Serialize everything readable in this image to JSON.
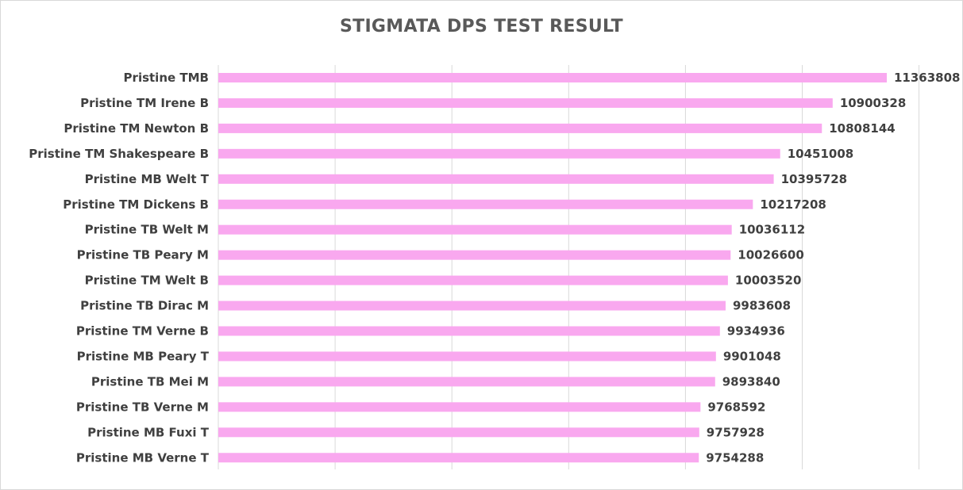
{
  "chart_data": {
    "type": "bar",
    "orientation": "horizontal",
    "title": "STIGMATA DPS TEST RESULT",
    "xlabel": "",
    "ylabel": "",
    "xlim": [
      0,
      12000000
    ],
    "grid": true,
    "legend": "none",
    "bar_color": "#f9a8ef",
    "categories": [
      "Pristine TMB",
      "Pristine TM Irene B",
      "Pristine TM Newton B",
      "Pristine TM Shakespeare B",
      "Pristine MB Welt T",
      "Pristine TM Dickens B",
      "Pristine TB Welt M",
      "Pristine TB Peary M",
      "Pristine TM Welt B",
      "Pristine TB Dirac M",
      "Pristine TM Verne B",
      "Pristine MB Peary T",
      "Pristine TB Mei M",
      "Pristine TB Verne M",
      "Pristine MB Fuxi T",
      "Pristine MB Verne T"
    ],
    "values": [
      11363808,
      10900328,
      10808144,
      10451008,
      10395728,
      10217208,
      10036112,
      10026600,
      10003520,
      9983608,
      9934936,
      9901048,
      9893840,
      9768592,
      9757928,
      9754288
    ],
    "value_labels": [
      "11363808",
      "10900328",
      "10808144",
      "10451008",
      "10395728",
      "10217208",
      "10036112",
      "10026600",
      "10003520",
      "9983608",
      "9934936",
      "9901048",
      "9893840",
      "9768592",
      "9757928",
      "9754288"
    ]
  }
}
